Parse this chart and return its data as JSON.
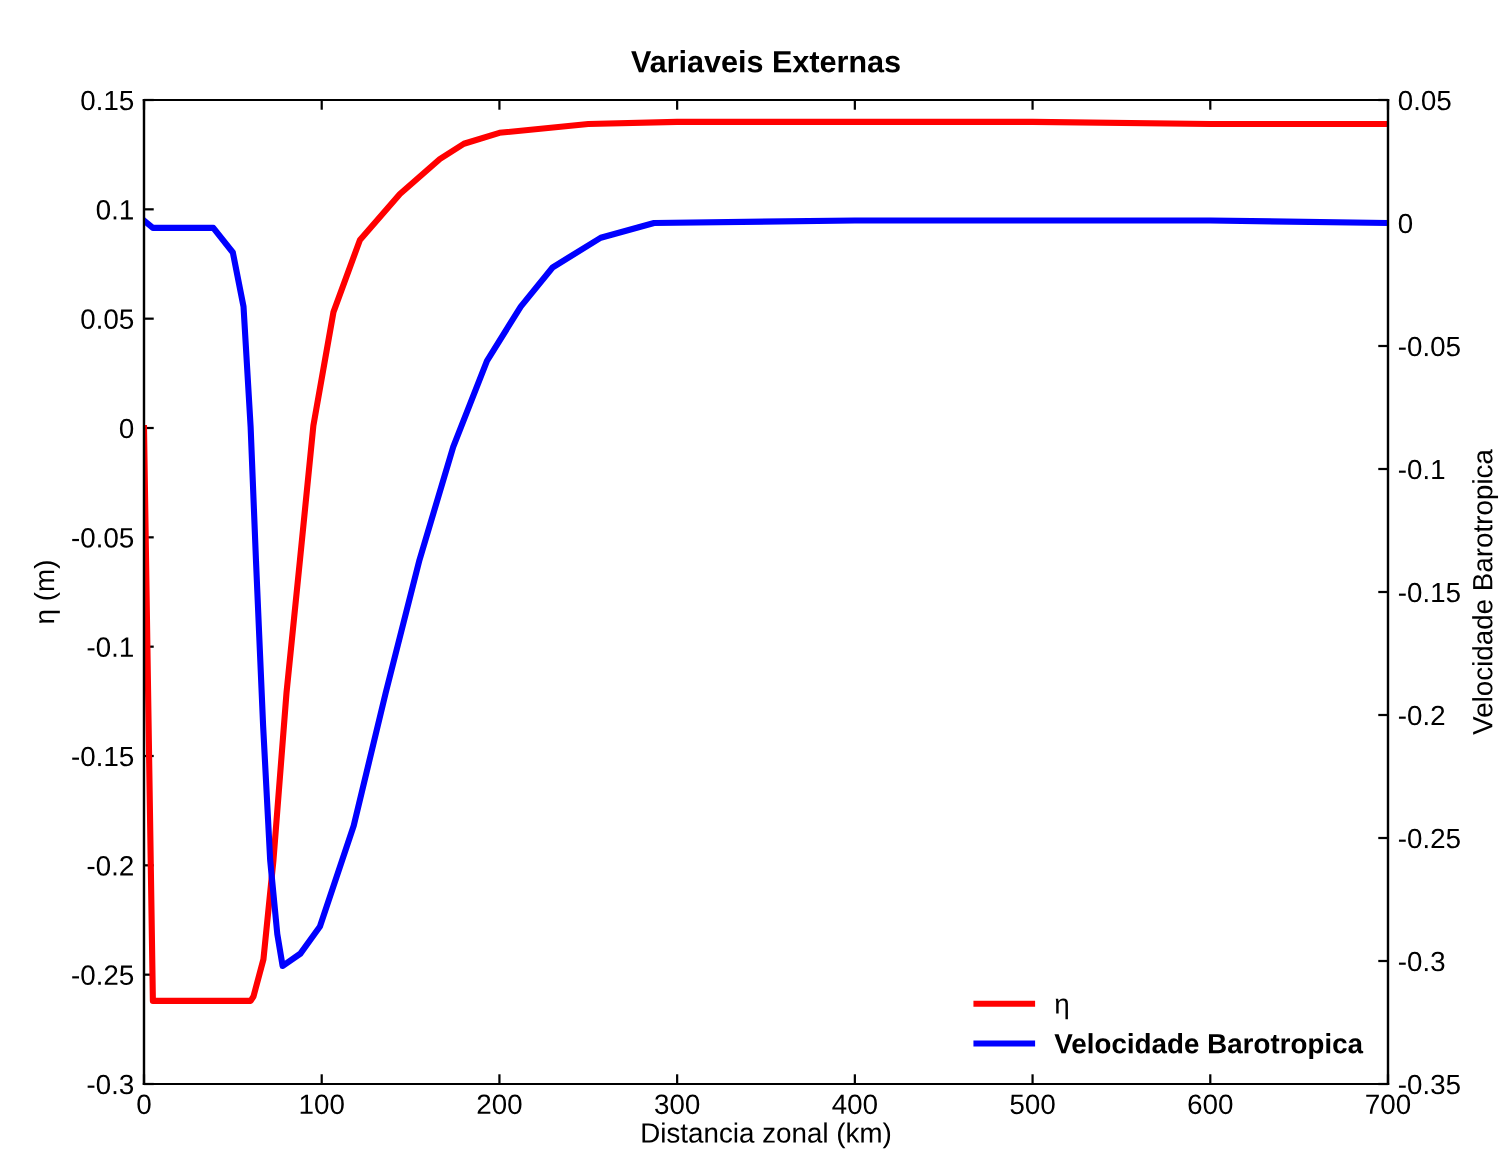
{
  "chart_data": {
    "type": "line",
    "title": "Variaveis Externas",
    "xlabel": "Distancia zonal (km)",
    "ylabel": "η (m)",
    "y2label": "Velocidade Barotropica",
    "xlim": [
      0,
      700
    ],
    "xticks": [
      0,
      100,
      200,
      300,
      400,
      500,
      600,
      700
    ],
    "ylim": [
      -0.3,
      0.15
    ],
    "yticks": [
      {
        "value": -0.3,
        "label": "-0.3"
      },
      {
        "value": -0.25,
        "label": "-0.25"
      },
      {
        "value": -0.2,
        "label": "-0.2"
      },
      {
        "value": -0.15,
        "label": "-0.15"
      },
      {
        "value": -0.1,
        "label": "-0.1"
      },
      {
        "value": -0.05,
        "label": "-0.05"
      },
      0,
      0.05,
      0.1,
      0.15
    ],
    "y2lim": [
      -0.35,
      0.05
    ],
    "y2ticks": [
      {
        "value": -0.35,
        "label": "-0.35"
      },
      {
        "value": -0.3,
        "label": "-0.3"
      },
      {
        "value": -0.25,
        "label": "-0.25"
      },
      {
        "value": -0.2,
        "label": "-0.2"
      },
      {
        "value": -0.15,
        "label": "-0.15"
      },
      {
        "value": -0.1,
        "label": "-0.1"
      },
      {
        "value": -0.05,
        "label": "-0.05"
      },
      0,
      0.05
    ],
    "legend": "bottom right",
    "grid": false,
    "line_style": "solid",
    "series": [
      {
        "name": "η",
        "color": "#ff0000",
        "x": [
          0,
          5,
          60,
          61.6,
          67.2,
          72.8,
          80.2,
          87.8,
          95.3,
          106.6,
          121.5,
          144,
          166.5,
          180,
          200,
          250,
          300,
          400,
          500,
          600,
          700
        ],
        "values": [
          0,
          -0.262,
          -0.262,
          -0.26,
          -0.243,
          -0.198,
          -0.121,
          -0.06,
          0.001,
          0.053,
          0.086,
          0.107,
          0.123,
          0.13,
          0.135,
          0.139,
          0.14,
          0.14,
          0.14,
          0.139,
          0.139
        ]
      },
      {
        "name": "Velocidade Barotropica",
        "color": "#0000ff",
        "axis": "y2",
        "x": [
          0,
          5,
          39,
          50,
          56,
          60,
          63,
          67,
          71,
          75,
          78,
          88,
          99,
          118,
          136,
          155,
          174,
          193,
          212,
          230,
          257,
          287,
          400,
          500,
          600,
          700
        ],
        "values": [
          0.001,
          -0.002,
          -0.002,
          -0.012,
          -0.034,
          -0.083,
          -0.137,
          -0.204,
          -0.259,
          -0.289,
          -0.302,
          -0.297,
          -0.286,
          -0.245,
          -0.191,
          -0.137,
          -0.091,
          -0.056,
          -0.034,
          -0.018,
          -0.006,
          0,
          0.001,
          0.001,
          0.001,
          0
        ]
      }
    ]
  }
}
